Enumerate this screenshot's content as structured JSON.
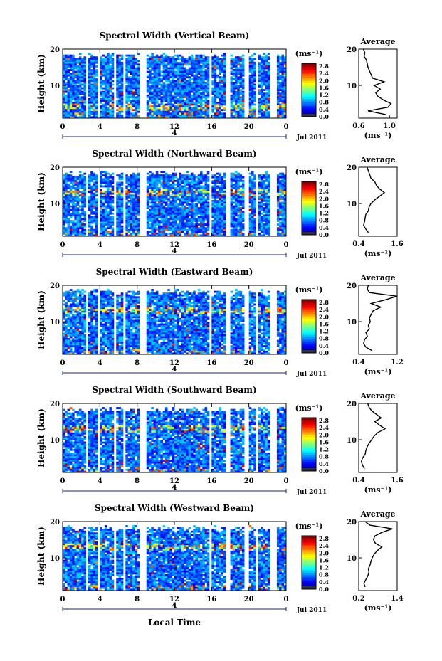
{
  "figure": {
    "x_axis_label": "Local Time",
    "date_label": "Jul 2011",
    "day_marker": "4",
    "height_label": "Height (km)",
    "unit_label": "(ms⁻¹)",
    "avg_title": "Average",
    "avg_xlabel": "(ms⁻¹)"
  },
  "chart_data": [
    {
      "type": "heatmap",
      "title": "Spectral Width (Vertical Beam)",
      "ylabel": "Height (km)",
      "x_ticks": [
        "0",
        "4",
        "8",
        "12",
        "16",
        "20",
        "0"
      ],
      "y_ticks": [
        "20",
        "10"
      ],
      "colorbar_ticks": [
        "2.8",
        "2.4",
        "2.0",
        "1.6",
        "1.2",
        "0.8",
        "0.4",
        "0.0"
      ],
      "avg_profile": {
        "xlim": [
          0.6,
          1.1
        ],
        "x_ticks": [
          "0.6",
          "1.0"
        ],
        "heights": [
          2,
          3,
          4,
          5,
          6,
          7,
          8,
          9,
          10,
          11,
          12,
          13,
          14,
          15,
          16,
          17,
          18,
          19,
          20
        ],
        "values": [
          0.95,
          0.72,
          0.98,
          1.02,
          0.92,
          0.85,
          0.82,
          0.88,
          0.8,
          0.93,
          0.78,
          0.76,
          0.74,
          0.72,
          0.71,
          0.7,
          0.67,
          0.68,
          0.66
        ]
      }
    },
    {
      "type": "heatmap",
      "title": "Spectral Width (Northward Beam)",
      "ylabel": "Height (km)",
      "x_ticks": [
        "0",
        "4",
        "8",
        "12",
        "16",
        "20",
        "0"
      ],
      "y_ticks": [
        "20",
        "10"
      ],
      "colorbar_ticks": [
        "2.8",
        "2.4",
        "2.0",
        "1.6",
        "1.2",
        "0.8",
        "0.4",
        "0.0"
      ],
      "avg_profile": {
        "xlim": [
          0.4,
          1.6
        ],
        "x_ticks": [
          "0.4",
          "1.6"
        ],
        "heights": [
          2,
          3,
          4,
          5,
          6,
          7,
          8,
          9,
          10,
          11,
          12,
          13,
          14,
          15,
          16,
          17,
          18,
          19,
          20
        ],
        "values": [
          0.7,
          0.62,
          0.55,
          0.58,
          0.6,
          0.62,
          0.7,
          0.72,
          0.78,
          0.9,
          1.05,
          1.2,
          1.05,
          0.95,
          0.9,
          0.78,
          0.74,
          0.7,
          0.66
        ]
      }
    },
    {
      "type": "heatmap",
      "title": "Spectral Width (Eastward Beam)",
      "ylabel": "Height (km)",
      "x_ticks": [
        "0",
        "4",
        "8",
        "12",
        "16",
        "20",
        "0"
      ],
      "y_ticks": [
        "20",
        "10"
      ],
      "colorbar_ticks": [
        "2.8",
        "2.4",
        "2.0",
        "1.6",
        "1.2",
        "0.8",
        "0.4",
        "0.0"
      ],
      "avg_profile": {
        "xlim": [
          0.4,
          1.2
        ],
        "x_ticks": [
          "0.4",
          "1.2"
        ],
        "heights": [
          2,
          3,
          4,
          5,
          6,
          7,
          8,
          9,
          10,
          11,
          12,
          13,
          14,
          15,
          16,
          17,
          18,
          19,
          20
        ],
        "values": [
          0.68,
          0.55,
          0.5,
          0.52,
          0.58,
          0.55,
          0.62,
          0.6,
          0.64,
          0.62,
          0.66,
          0.7,
          0.86,
          0.66,
          0.95,
          1.2,
          0.62,
          0.58,
          0.6
        ]
      }
    },
    {
      "type": "heatmap",
      "title": "Spectral Width (Southward Beam)",
      "ylabel": "Height (km)",
      "x_ticks": [
        "0",
        "4",
        "8",
        "12",
        "16",
        "20",
        "0"
      ],
      "y_ticks": [
        "20",
        "10"
      ],
      "colorbar_ticks": [
        "2.8",
        "2.4",
        "2.0",
        "1.6",
        "1.2",
        "0.8",
        "0.4",
        "0.0"
      ],
      "avg_profile": {
        "xlim": [
          0.4,
          1.6
        ],
        "x_ticks": [
          "0.4",
          "1.6"
        ],
        "heights": [
          2,
          3,
          4,
          5,
          6,
          7,
          8,
          9,
          10,
          11,
          12,
          13,
          14,
          15,
          16,
          17,
          18,
          19,
          20
        ],
        "values": [
          0.58,
          0.52,
          0.48,
          0.52,
          0.6,
          0.62,
          0.66,
          0.72,
          0.8,
          0.88,
          1.0,
          1.22,
          1.05,
          0.9,
          1.1,
          0.95,
          0.8,
          0.72,
          0.68
        ]
      }
    },
    {
      "type": "heatmap",
      "title": "Spectral Width (Westward Beam)",
      "ylabel": "Height (km)",
      "x_ticks": [
        "0",
        "4",
        "8",
        "12",
        "16",
        "20",
        "0"
      ],
      "y_ticks": [
        "20",
        "10"
      ],
      "colorbar_ticks": [
        "2.8",
        "2.4",
        "2.0",
        "1.6",
        "1.2",
        "0.8",
        "0.4",
        "0.0"
      ],
      "avg_profile": {
        "xlim": [
          0.2,
          1.4
        ],
        "x_ticks": [
          "0.2",
          "1.4"
        ],
        "heights": [
          2,
          3,
          4,
          5,
          6,
          7,
          8,
          9,
          10,
          11,
          12,
          13,
          14,
          15,
          16,
          17,
          18,
          19,
          20
        ],
        "values": [
          0.4,
          0.36,
          0.42,
          0.48,
          0.52,
          0.5,
          0.55,
          0.58,
          0.62,
          0.68,
          0.78,
          0.92,
          0.72,
          0.66,
          0.7,
          0.92,
          1.25,
          0.55,
          0.4
        ]
      }
    }
  ]
}
